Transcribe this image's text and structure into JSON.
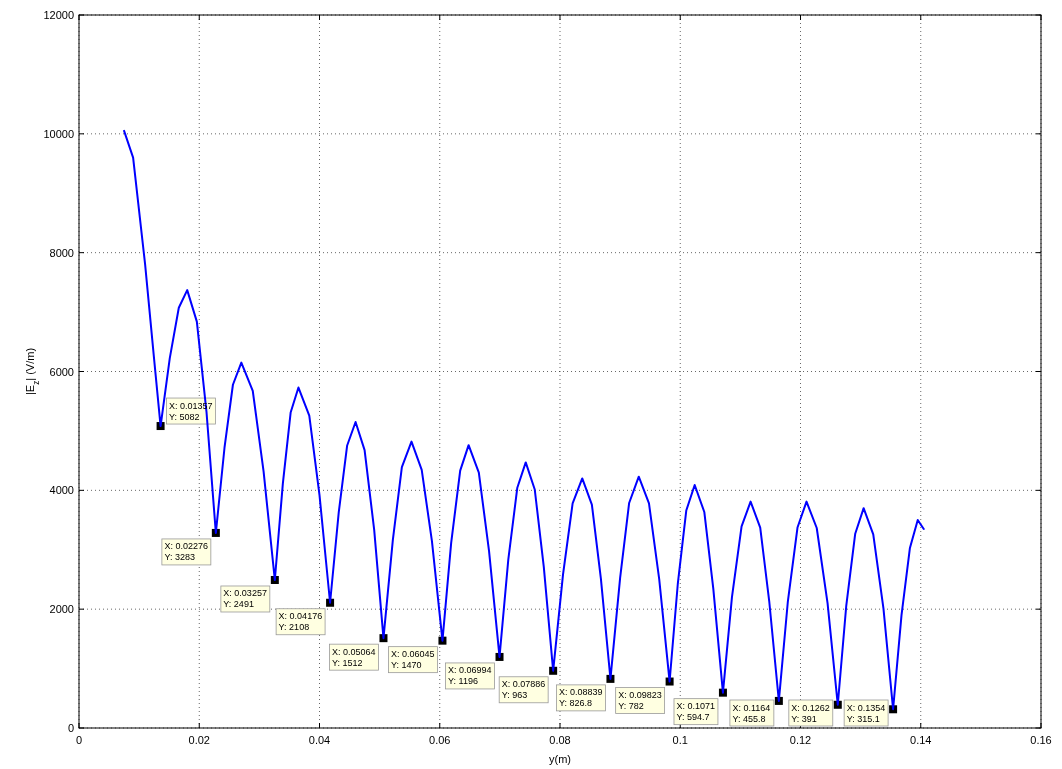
{
  "chart_data": {
    "type": "line",
    "xlabel": "y(m)",
    "ylabel": "|E$_{z}$| (V/m)",
    "xlim": [
      0,
      0.16
    ],
    "ylim": [
      0,
      12000
    ],
    "xticks": [
      0,
      0.02,
      0.04,
      0.06,
      0.08,
      0.1,
      0.12,
      0.14,
      0.16
    ],
    "yticks": [
      0,
      2000,
      4000,
      6000,
      8000,
      10000,
      12000
    ],
    "grid": true,
    "series": [
      {
        "color": "#0000ff",
        "marker": "none",
        "line_style": "solid",
        "x": [
          0.0075,
          0.009,
          0.011,
          0.0125,
          0.01357,
          0.0151,
          0.0166,
          0.018,
          0.0196,
          0.0212,
          0.02276,
          0.0242,
          0.0256,
          0.027,
          0.0289,
          0.0307,
          0.03257,
          0.0339,
          0.0352,
          0.0365,
          0.0383,
          0.04,
          0.04176,
          0.0432,
          0.0446,
          0.046,
          0.0475,
          0.0491,
          0.05064,
          0.0522,
          0.0537,
          0.0553,
          0.057,
          0.0587,
          0.06045,
          0.0619,
          0.0634,
          0.0648,
          0.0665,
          0.0682,
          0.06994,
          0.0714,
          0.0729,
          0.0743,
          0.0758,
          0.0773,
          0.07886,
          0.0805,
          0.0821,
          0.0837,
          0.0853,
          0.0868,
          0.08839,
          0.09,
          0.0915,
          0.0931,
          0.0948,
          0.0965,
          0.09823,
          0.0996,
          0.101,
          0.1024,
          0.104,
          0.1055,
          0.1071,
          0.1086,
          0.1102,
          0.1117,
          0.1133,
          0.1148,
          0.1164,
          0.1179,
          0.1195,
          0.121,
          0.1227,
          0.1245,
          0.1262,
          0.1276,
          0.1291,
          0.1305,
          0.1321,
          0.1338,
          0.1354,
          0.1368,
          0.1382,
          0.1395,
          0.1405
        ],
        "values": [
          10050,
          9600,
          7800,
          6200,
          5082,
          6226,
          7073,
          7370,
          6839,
          5326,
          3283,
          4717,
          5777,
          6150,
          5674,
          4320,
          2491,
          4110,
          5309,
          5730,
          5259,
          3919,
          2108,
          3629,
          4755,
          5150,
          4677,
          3331,
          1512,
          3166,
          4390,
          4820,
          4345,
          3145,
          1470,
          3115,
          4332,
          4760,
          4297,
          2978,
          1196,
          2833,
          4044,
          4470,
          4014,
          2717,
          963,
          2582,
          3779,
          4200,
          3761,
          2513,
          826.8,
          2528,
          3787,
          4230,
          3779,
          2506,
          782,
          2436,
          3660,
          4090,
          3636,
          2342,
          594.7,
          2202,
          3392,
          3810,
          3374,
          2133,
          455.8,
          2133,
          3374,
          3810,
          3366,
          2100,
          391,
          2045,
          3270,
          3700,
          3260,
          2008,
          315.1,
          1900,
          3030,
          3500,
          3350
        ]
      },
      {
        "type": "scatter",
        "color": "#000000",
        "marker": "square",
        "x": [
          0.01357,
          0.02276,
          0.03257,
          0.04176,
          0.05064,
          0.06045,
          0.06994,
          0.07886,
          0.08839,
          0.09823,
          0.1071,
          0.1164,
          0.1262,
          0.1354
        ],
        "values": [
          5082,
          3283,
          2491,
          2108,
          1512,
          1470,
          1196,
          963,
          826.8,
          782,
          594.7,
          455.8,
          391,
          315.1
        ]
      }
    ],
    "annotations": [
      {
        "text": "X: 0.01357\nY: 5082",
        "x": 0.01357,
        "y": 5082
      },
      {
        "text": "X: 0.02276\nY: 3283",
        "x": 0.02276,
        "y": 3283
      },
      {
        "text": "X: 0.03257\nY: 2491",
        "x": 0.03257,
        "y": 2491
      },
      {
        "text": "X: 0.04176\nY: 2108",
        "x": 0.04176,
        "y": 2108
      },
      {
        "text": "X: 0.05064\nY: 1512",
        "x": 0.05064,
        "y": 1512
      },
      {
        "text": "X: 0.06045\nY: 1470",
        "x": 0.06045,
        "y": 1470
      },
      {
        "text": "X: 0.06994\nY: 1196",
        "x": 0.06994,
        "y": 1196
      },
      {
        "text": "X: 0.07886\nY: 963",
        "x": 0.07886,
        "y": 963
      },
      {
        "text": "X: 0.08839\nY: 826.8",
        "x": 0.08839,
        "y": 826.8
      },
      {
        "text": "X: 0.09823\nY: 782",
        "x": 0.09823,
        "y": 782
      },
      {
        "text": "X: 0.1071\nY: 594.7",
        "x": 0.1071,
        "y": 594.7
      },
      {
        "text": "X: 0.1164\nY: 455.8",
        "x": 0.1164,
        "y": 455.8
      },
      {
        "text": "X: 0.1262\nY: 391",
        "x": 0.1262,
        "y": 391
      },
      {
        "text": "X: 0.1354\nY: 315.1",
        "x": 0.1354,
        "y": 315.1
      }
    ]
  }
}
